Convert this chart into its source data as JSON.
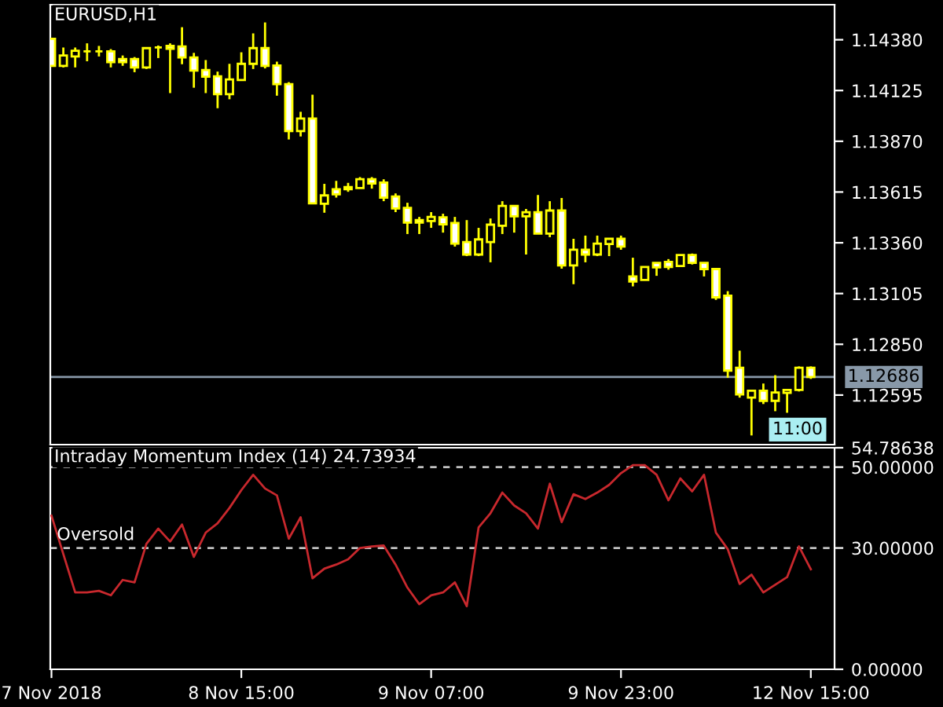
{
  "chart_data": [
    {
      "type": "candlestick",
      "title": "EURUSD,H1",
      "categories": [
        null,
        null,
        null,
        null,
        null,
        null,
        null,
        null,
        null,
        null,
        null,
        null,
        null,
        null,
        null,
        null,
        null,
        null,
        null,
        null,
        null,
        null,
        null,
        null,
        null,
        null,
        null,
        null,
        null,
        null,
        null,
        null,
        null,
        null,
        null,
        null,
        null,
        null,
        null,
        null,
        null,
        null,
        null,
        null,
        null,
        null,
        null,
        null,
        null,
        null,
        null,
        null,
        null,
        null,
        null,
        null,
        null,
        null,
        null,
        null,
        null,
        null,
        null,
        null,
        null
      ],
      "series": [
        {
          "type": "candlestick",
          "color": "#ffff00",
          "ohlc": [
            [
              1.14385,
              1.14385,
              1.14249,
              1.14249
            ],
            [
              1.14249,
              1.14341,
              1.14241,
              1.14301
            ],
            [
              1.14296,
              1.14341,
              1.14241,
              1.14325
            ],
            [
              1.14322,
              1.14362,
              1.14272,
              1.14322
            ],
            [
              1.14322,
              1.14349,
              1.14296,
              1.14322
            ],
            [
              1.14322,
              1.14333,
              1.14241,
              1.14267
            ],
            [
              1.14283,
              1.14301,
              1.14249,
              1.14267
            ],
            [
              1.14283,
              1.14293,
              1.14217,
              1.14241
            ],
            [
              1.14241,
              1.14338,
              1.14233,
              1.14338
            ],
            [
              1.14341,
              1.14351,
              1.14288,
              1.14341
            ],
            [
              1.14349,
              1.14362,
              1.14112,
              1.14335
            ],
            [
              1.14346,
              1.14443,
              1.14257,
              1.14291
            ],
            [
              1.14291,
              1.14314,
              1.14139,
              1.14225
            ],
            [
              1.14228,
              1.14278,
              1.14112,
              1.14194
            ],
            [
              1.14196,
              1.1422,
              1.14036,
              1.14107
            ],
            [
              1.14107,
              1.14259,
              1.14081,
              1.14181
            ],
            [
              1.14178,
              1.14317,
              1.14178,
              1.14259
            ],
            [
              1.14259,
              1.14412,
              1.14233,
              1.14338
            ],
            [
              1.14338,
              1.14467,
              1.14236,
              1.14249
            ],
            [
              1.14251,
              1.1427,
              1.14099,
              1.14157
            ],
            [
              1.14157,
              1.14167,
              1.13879,
              1.13921
            ],
            [
              1.13921,
              1.14018,
              1.13894,
              1.13984
            ],
            [
              1.13984,
              1.14104,
              1.13558,
              1.13558
            ],
            [
              1.13556,
              1.13656,
              1.13511,
              1.13598
            ],
            [
              1.13629,
              1.13671,
              1.13587,
              1.13603
            ],
            [
              1.1364,
              1.13661,
              1.13616,
              1.13629
            ],
            [
              1.13635,
              1.1369,
              1.13635,
              1.13679
            ],
            [
              1.13679,
              1.1369,
              1.13632,
              1.13658
            ],
            [
              1.13663,
              1.13679,
              1.13569,
              1.13587
            ],
            [
              1.13593,
              1.13608,
              1.13514,
              1.13532
            ],
            [
              1.13535,
              1.13561,
              1.13404,
              1.13461
            ],
            [
              1.13474,
              1.1349,
              1.13404,
              1.13461
            ],
            [
              1.13469,
              1.13514,
              1.13435,
              1.1349
            ],
            [
              1.13488,
              1.13506,
              1.13411,
              1.13453
            ],
            [
              1.13459,
              1.1349,
              1.13341,
              1.13356
            ],
            [
              1.13364,
              1.13474,
              1.13293,
              1.13301
            ],
            [
              1.13301,
              1.13435,
              1.13293,
              1.13377
            ],
            [
              1.13364,
              1.13482,
              1.13262,
              1.13451
            ],
            [
              1.13446,
              1.13569,
              1.13404,
              1.13545
            ],
            [
              1.13545,
              1.13545,
              1.13411,
              1.13493
            ],
            [
              1.13493,
              1.1353,
              1.13301,
              1.13514
            ],
            [
              1.13514,
              1.136,
              1.13406,
              1.13406
            ],
            [
              1.13406,
              1.13569,
              1.13388,
              1.13522
            ],
            [
              1.13522,
              1.13585,
              1.1323,
              1.13246
            ],
            [
              1.13246,
              1.1338,
              1.13152,
              1.13325
            ],
            [
              1.13325,
              1.13396,
              1.13262,
              1.13301
            ],
            [
              1.13301,
              1.13396,
              1.13293,
              1.13356
            ],
            [
              1.13354,
              1.1338,
              1.13293,
              1.1338
            ],
            [
              1.1338,
              1.13396,
              1.13325,
              1.13341
            ],
            [
              1.13191,
              1.13285,
              1.13141,
              1.13165
            ],
            [
              1.13173,
              1.13238,
              1.13173,
              1.13238
            ],
            [
              1.13259,
              1.13259,
              1.13194,
              1.13236
            ],
            [
              1.13264,
              1.13278,
              1.13225,
              1.13238
            ],
            [
              1.13243,
              1.13299,
              1.13243,
              1.13299
            ],
            [
              1.13299,
              1.13306,
              1.13251,
              1.13259
            ],
            [
              1.13259,
              1.13259,
              1.13191,
              1.13228
            ],
            [
              1.13228,
              1.13228,
              1.13073,
              1.13086
            ],
            [
              1.13094,
              1.13117,
              1.12682,
              1.12718
            ],
            [
              1.12732,
              1.12818,
              1.12582,
              1.12598
            ],
            [
              1.12582,
              1.12617,
              1.12392,
              1.12617
            ],
            [
              1.12617,
              1.12653,
              1.1255,
              1.12566
            ],
            [
              1.12566,
              1.12695,
              1.12514,
              1.12608
            ],
            [
              1.12606,
              1.12621,
              1.12506,
              1.12621
            ],
            [
              1.12621,
              1.12739,
              1.12613,
              1.12732
            ],
            [
              1.12732,
              1.12739,
              1.12676,
              1.12686
            ]
          ]
        }
      ],
      "ylim": [
        1.12346,
        1.14556
      ],
      "yticks": [
        {
          "value": 1.1438,
          "label": "1.14380"
        },
        {
          "value": 1.14125,
          "label": "1.14125"
        },
        {
          "value": 1.1387,
          "label": "1.13870"
        },
        {
          "value": 1.13615,
          "label": "1.13615"
        },
        {
          "value": 1.1336,
          "label": "1.13360"
        },
        {
          "value": 1.13105,
          "label": "1.13105"
        },
        {
          "value": 1.1285,
          "label": "1.12850"
        },
        {
          "value": 1.12595,
          "label": "1.12595"
        }
      ],
      "ref_lines": [
        {
          "axis": "y",
          "value": 1.12686,
          "label": "1.12686",
          "color": "#8898a8",
          "line_style": "solid"
        }
      ],
      "annotations": [
        "11:00"
      ],
      "tick_labels": "y",
      "grid": false,
      "legend": false
    },
    {
      "type": "line",
      "title": "Intraday Momentum Index (14) 24.73934",
      "categories": [
        "7 Nov 2018",
        null,
        null,
        null,
        null,
        null,
        null,
        null,
        null,
        null,
        null,
        null,
        null,
        null,
        null,
        null,
        "8 Nov 15:00",
        null,
        null,
        null,
        null,
        null,
        null,
        null,
        null,
        null,
        null,
        null,
        null,
        null,
        null,
        null,
        "9 Nov 07:00",
        null,
        null,
        null,
        null,
        null,
        null,
        null,
        null,
        null,
        null,
        null,
        null,
        null,
        null,
        null,
        "9 Nov 23:00",
        null,
        null,
        null,
        null,
        null,
        null,
        null,
        null,
        null,
        null,
        null,
        null,
        null,
        null,
        null,
        "12 Nov 15:00"
      ],
      "series": [
        {
          "color": "#c8282d",
          "values": [
            38.0,
            28.5,
            19.0,
            19.0,
            19.4,
            18.3,
            22.1,
            21.5,
            31.0,
            34.8,
            31.6,
            35.8,
            27.8,
            33.8,
            36.1,
            39.9,
            44.3,
            48.1,
            44.7,
            43.0,
            32.3,
            37.6,
            22.5,
            24.9,
            25.9,
            27.2,
            30.0,
            30.4,
            30.6,
            25.9,
            20.2,
            16.1,
            18.3,
            19.0,
            21.5,
            15.6,
            35.1,
            38.6,
            43.7,
            40.5,
            38.6,
            34.8,
            45.9,
            36.4,
            43.3,
            42.1,
            43.7,
            45.6,
            48.5,
            50.5,
            50.5,
            48.1,
            41.8,
            47.2,
            44.0,
            48.1,
            33.8,
            29.7,
            21.1,
            23.4,
            19.0,
            20.9,
            22.8,
            30.4,
            24.73934
          ]
        }
      ],
      "ylim": [
        0,
        54.78638
      ],
      "yticks": [
        {
          "value": 54.78638,
          "label": "54.78638"
        },
        {
          "value": 50,
          "label": "50.00000"
        },
        {
          "value": 30,
          "label": "30.00000"
        },
        {
          "value": 0,
          "label": "0.00000"
        }
      ],
      "ref_lines": [
        {
          "axis": "y",
          "value": 50,
          "color": "#c0c0c0",
          "line_style": "dashed"
        },
        {
          "axis": "y",
          "value": 30,
          "label": "Oversold",
          "color": "#c0c0c0",
          "line_style": "dashed"
        }
      ],
      "marker": "none",
      "line_style": "solid",
      "grid": false,
      "legend": false
    }
  ]
}
